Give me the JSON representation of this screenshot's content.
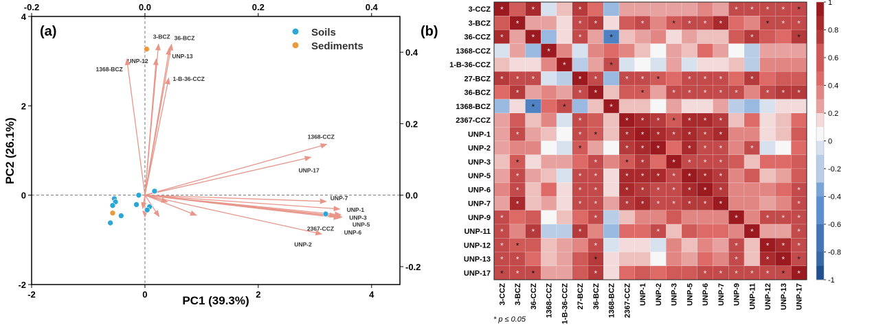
{
  "chart_data": [
    {
      "type": "scatter",
      "panel_label": "(a)",
      "xlabel": "PC1 (39.3%)",
      "ylabel": "PC2 (26.1%)",
      "xlim": [
        -2,
        4.5
      ],
      "ylim": [
        -2,
        4
      ],
      "xticks": [
        "-2",
        "0",
        "2",
        "4"
      ],
      "yticks": [
        "-2",
        "0",
        "2",
        "4"
      ],
      "top_xlim": [
        -0.2,
        0.45
      ],
      "top_xticks": [
        "-0.2",
        "0.0",
        "0.2",
        "0.4"
      ],
      "right_ylim": [
        -0.25,
        0.5
      ],
      "right_yticks": [
        "-0.2",
        "0.0",
        "0.2",
        "0.4"
      ],
      "legend_placement": "top-right",
      "series": [
        {
          "name": "Soils",
          "color": "#2aa7d6",
          "points": [
            [
              0.17,
              0.09
            ],
            [
              -0.11,
              0.0
            ],
            [
              -0.54,
              -0.08
            ],
            [
              -0.52,
              -0.15
            ],
            [
              -0.57,
              -0.23
            ],
            [
              -0.15,
              -0.21
            ],
            [
              0.08,
              -0.26
            ],
            [
              0.04,
              -0.33
            ],
            [
              -0.42,
              -0.46
            ],
            [
              -0.61,
              -0.62
            ],
            [
              3.19,
              -0.42
            ]
          ]
        },
        {
          "name": "Sediments",
          "color": "#e89a3c",
          "points": [
            [
              0.03,
              3.27
            ],
            [
              -0.57,
              -0.4
            ]
          ]
        }
      ],
      "loadings_color": "#e8968a",
      "loadings": [
        {
          "label": "3-BCZ",
          "x": 0.24,
          "y": 3.38
        },
        {
          "label": "36-BCZ",
          "x": 0.47,
          "y": 3.38
        },
        {
          "label": "UNP-12",
          "x": 0.2,
          "y": 3.05
        },
        {
          "label": "UNP-13",
          "x": 0.43,
          "y": 3.28
        },
        {
          "label": "1368-BCZ",
          "x": -0.32,
          "y": 3.05
        },
        {
          "label": "1-B-36-CCZ",
          "x": 0.42,
          "y": 2.62
        },
        {
          "label": "1368-CCZ",
          "x": 3.21,
          "y": 1.14
        },
        {
          "label": "UNP-17",
          "x": 2.93,
          "y": 0.85
        },
        {
          "label": "UNP-7",
          "x": 3.2,
          "y": -0.14
        },
        {
          "label": "UNP-1",
          "x": 3.44,
          "y": -0.31
        },
        {
          "label": "UNP-3",
          "x": 3.46,
          "y": -0.44
        },
        {
          "label": "UNP-5",
          "x": 3.48,
          "y": -0.49
        },
        {
          "label": "UNP-6",
          "x": 3.44,
          "y": -0.51
        },
        {
          "label": "2367-CCZ",
          "x": 3.37,
          "y": -0.46
        },
        {
          "label": "UNP-2",
          "x": 3.12,
          "y": -0.87
        },
        {
          "label": "",
          "x": 0.91,
          "y": -0.45
        },
        {
          "label": "",
          "x": 0.4,
          "y": -0.15
        },
        {
          "label": "",
          "x": 0.25,
          "y": -0.48
        },
        {
          "label": "",
          "x": 0.0,
          "y": -0.49
        },
        {
          "label": "",
          "x": -0.04,
          "y": -0.3
        }
      ]
    },
    {
      "type": "heatmap",
      "panel_label": "(b)",
      "labels": [
        "3-CCZ",
        "3-BCZ",
        "36-CCZ",
        "1368-CCZ",
        "1-B-36-CCZ",
        "27-BCZ",
        "36-BCZ",
        "1368-BCZ",
        "2367-CCZ",
        "UNP-1",
        "UNP-2",
        "UNP-3",
        "UNP-5",
        "UNP-6",
        "UNP-7",
        "UNP-9",
        "UNP-11",
        "UNP-12",
        "UNP-13",
        "UNP-17"
      ],
      "colorbar_range": [
        -1,
        1
      ],
      "colorbar_ticks": [
        "1",
        "0.8",
        "0.6",
        "0.4",
        "0.2",
        "0",
        "-0.2",
        "-0.4",
        "-0.6",
        "-0.8",
        "-1"
      ],
      "colors": {
        "low": "#1f4f8f",
        "mid": "#f7f7f7",
        "high": "#9b1a1f"
      },
      "footnote": "* p ≤ 0.05",
      "values": [
        [
          1,
          0.6,
          0.85,
          -0.1,
          0.2,
          0.75,
          0.45,
          -0.35,
          0.3,
          0.3,
          0.3,
          0.25,
          0.3,
          0.35,
          0.3,
          0.65,
          0.65,
          0.7,
          0.7,
          0.65
        ],
        [
          0.6,
          1,
          0.3,
          0.3,
          0.1,
          0.7,
          0.8,
          0.1,
          0.6,
          0.65,
          0.4,
          0.6,
          0.65,
          0.7,
          0.85,
          0.45,
          0.4,
          0.65,
          0.7,
          0.7
        ],
        [
          0.85,
          0.3,
          1,
          -0.3,
          0.1,
          0.65,
          0.3,
          -0.65,
          0.2,
          0.3,
          0.4,
          0.05,
          0.3,
          0.2,
          0.2,
          0.6,
          0.8,
          0.6,
          0.5,
          0.75
        ],
        [
          -0.1,
          0.3,
          -0.3,
          1,
          0.4,
          -0.1,
          0.4,
          0.5,
          0.4,
          0.2,
          -0.05,
          0.3,
          0.2,
          0.5,
          0.3,
          -0.05,
          -0.25,
          0.3,
          0.3,
          0.3
        ],
        [
          0.2,
          0.1,
          0.1,
          0.4,
          1,
          -0.2,
          0.3,
          0.65,
          -0.1,
          -0.05,
          -0.15,
          0.3,
          -0.1,
          0.1,
          0.1,
          0.2,
          -0.25,
          0.4,
          0.4,
          0.4
        ],
        [
          0.75,
          0.7,
          0.65,
          -0.1,
          -0.2,
          1,
          0.65,
          -0.3,
          0.65,
          0.65,
          0.6,
          0.45,
          0.7,
          0.65,
          0.65,
          0.45,
          0.75,
          0.5,
          0.6,
          0.6
        ],
        [
          0.45,
          0.8,
          0.3,
          0.4,
          0.3,
          0.65,
          1,
          0.2,
          0.6,
          0.6,
          0.3,
          0.7,
          0.7,
          0.7,
          0.7,
          0.65,
          0.4,
          0.7,
          0.8,
          0.75
        ],
        [
          -0.35,
          0.1,
          -0.65,
          0.5,
          0.65,
          -0.3,
          0.2,
          1,
          0.2,
          0.2,
          -0.05,
          0.3,
          0.05,
          0.05,
          0.25,
          -0.25,
          -0.35,
          -0.15,
          0.05,
          0.05
        ],
        [
          0.3,
          0.6,
          0.2,
          0.4,
          -0.1,
          0.65,
          0.6,
          0.2,
          1,
          0.9,
          0.75,
          0.6,
          0.9,
          0.85,
          0.8,
          0.2,
          0.45,
          0.1,
          0.15,
          0.5
        ],
        [
          0.3,
          0.65,
          0.3,
          0.2,
          -0.05,
          0.65,
          0.6,
          0.2,
          0.9,
          1,
          0.85,
          0.75,
          0.9,
          0.8,
          0.9,
          0.35,
          0.4,
          0.1,
          0.2,
          0.6
        ],
        [
          0.3,
          0.4,
          0.4,
          -0.05,
          -0.15,
          0.6,
          0.3,
          -0.05,
          0.75,
          0.85,
          1,
          0.45,
          0.85,
          0.65,
          0.7,
          0.35,
          0.65,
          -0.15,
          -0.05,
          0.5
        ],
        [
          0.2,
          0.6,
          0.05,
          0.3,
          0.3,
          0.45,
          0.7,
          0.4,
          0.6,
          0.75,
          0.45,
          1,
          0.7,
          0.7,
          0.7,
          0.55,
          0.2,
          0.5,
          0.5,
          0.6
        ],
        [
          0.3,
          0.65,
          0.3,
          0.2,
          -0.1,
          0.7,
          0.7,
          0.05,
          0.9,
          0.9,
          0.85,
          0.7,
          1,
          0.85,
          0.8,
          0.35,
          0.6,
          0.2,
          0.3,
          0.55
        ],
        [
          0.35,
          0.7,
          0.2,
          0.5,
          0.1,
          0.65,
          0.7,
          0.05,
          0.85,
          0.8,
          0.65,
          0.7,
          0.85,
          1,
          0.8,
          0.4,
          0.4,
          0.4,
          0.5,
          0.65
        ],
        [
          0.3,
          0.85,
          0.2,
          0.3,
          0.1,
          0.65,
          0.7,
          0.25,
          0.8,
          0.9,
          0.7,
          0.7,
          0.8,
          0.8,
          1,
          0.4,
          0.4,
          0.3,
          0.4,
          0.65
        ],
        [
          0.65,
          0.45,
          0.6,
          -0.05,
          0.2,
          0.45,
          0.65,
          -0.25,
          0.2,
          0.35,
          0.35,
          0.55,
          0.35,
          0.4,
          0.4,
          1,
          0.4,
          0.65,
          0.65,
          0.65
        ],
        [
          0.65,
          0.4,
          0.75,
          -0.25,
          -0.25,
          0.75,
          0.4,
          -0.35,
          0.45,
          0.45,
          0.65,
          0.2,
          0.6,
          0.45,
          0.45,
          0.4,
          1,
          0.3,
          0.3,
          0.65
        ],
        [
          0.65,
          0.6,
          0.6,
          0.2,
          0.3,
          0.4,
          0.65,
          -0.15,
          0.1,
          0.1,
          -0.15,
          0.4,
          0.2,
          0.4,
          0.3,
          0.65,
          0.2,
          1,
          0.9,
          0.65
        ],
        [
          0.65,
          0.65,
          0.45,
          0.2,
          0.3,
          0.55,
          0.8,
          0.05,
          0.2,
          0.2,
          -0.05,
          0.4,
          0.3,
          0.45,
          0.35,
          0.65,
          0.2,
          0.9,
          1,
          0.7
        ],
        [
          0.65,
          0.65,
          0.65,
          0.3,
          0.3,
          0.55,
          0.75,
          0.05,
          0.45,
          0.6,
          0.5,
          0.55,
          0.55,
          0.65,
          0.65,
          0.65,
          0.65,
          0.65,
          0.7,
          1
        ]
      ],
      "significance": [
        [
          "w",
          "",
          "w",
          "",
          "",
          "w",
          "",
          "",
          "",
          "",
          "",
          "",
          "",
          "",
          "",
          "w",
          "w",
          "w",
          "w",
          "b"
        ],
        [
          "",
          "w",
          "",
          "",
          "",
          "w",
          "w",
          "",
          "",
          "w",
          "",
          "b",
          "w",
          "w",
          "w",
          "",
          "",
          "b",
          "w",
          "w"
        ],
        [
          "w",
          "",
          "w",
          "",
          "",
          "w",
          "",
          "b",
          "",
          "",
          "",
          "",
          "",
          "",
          "",
          "",
          "w",
          "",
          "",
          "b"
        ],
        [
          "",
          "",
          "",
          "w",
          "",
          "",
          "",
          "",
          "",
          "",
          "",
          "",
          "",
          "",
          "",
          "",
          "",
          "",
          "",
          ""
        ],
        [
          "",
          "",
          "",
          "",
          "w",
          "",
          "",
          "b",
          "",
          "",
          "",
          "",
          "",
          "",
          "",
          "",
          "",
          "",
          "",
          ""
        ],
        [
          "w",
          "w",
          "w",
          "",
          "",
          "w",
          "w",
          "",
          "w",
          "w",
          "b",
          "",
          "w",
          "w",
          "w",
          "",
          "w",
          "",
          "",
          ""
        ],
        [
          "",
          "w",
          "",
          "",
          "",
          "w",
          "w",
          "",
          "",
          "b",
          "",
          "w",
          "w",
          "w",
          "w",
          "w",
          "",
          "w",
          "w",
          "w"
        ],
        [
          "",
          "",
          "b",
          "",
          "b",
          "",
          "",
          "w",
          "",
          "",
          "",
          "",
          "",
          "",
          "",
          "",
          "",
          "",
          "",
          ""
        ],
        [
          "",
          "",
          "",
          "",
          "",
          "w",
          "",
          "",
          "w",
          "w",
          "w",
          "b",
          "w",
          "w",
          "w",
          "",
          "",
          "",
          "",
          ""
        ],
        [
          "",
          "w",
          "",
          "",
          "",
          "w",
          "b",
          "",
          "w",
          "w",
          "w",
          "w",
          "w",
          "w",
          "w",
          "",
          "",
          "",
          "",
          ""
        ],
        [
          "",
          "",
          "",
          "",
          "",
          "b",
          "",
          "",
          "w",
          "w",
          "w",
          "",
          "w",
          "w",
          "w",
          "",
          "w",
          "",
          "",
          ""
        ],
        [
          "",
          "b",
          "",
          "",
          "",
          "",
          "w",
          "",
          "b",
          "w",
          "",
          "w",
          "w",
          "w",
          "w",
          "",
          "",
          "",
          "",
          ""
        ],
        [
          "",
          "w",
          "",
          "",
          "",
          "w",
          "w",
          "",
          "w",
          "w",
          "w",
          "w",
          "w",
          "w",
          "w",
          "",
          "",
          "",
          "",
          ""
        ],
        [
          "",
          "w",
          "",
          "",
          "",
          "w",
          "w",
          "",
          "w",
          "w",
          "w",
          "w",
          "w",
          "w",
          "w",
          "",
          "",
          "",
          "",
          "w"
        ],
        [
          "",
          "w",
          "",
          "",
          "",
          "w",
          "w",
          "",
          "w",
          "w",
          "w",
          "w",
          "w",
          "w",
          "w",
          "",
          "",
          "",
          "",
          "w"
        ],
        [
          "w",
          "",
          "",
          "",
          "",
          "",
          "w",
          "",
          "",
          "",
          "",
          "",
          "",
          "",
          "",
          "w",
          "",
          "w",
          "w",
          "w"
        ],
        [
          "w",
          "",
          "w",
          "",
          "",
          "w",
          "",
          "",
          "",
          "",
          "w",
          "",
          "",
          "",
          "",
          "",
          "w",
          "",
          "",
          "w"
        ],
        [
          "w",
          "b",
          "",
          "",
          "",
          "",
          "w",
          "",
          "",
          "",
          "",
          "",
          "",
          "",
          "",
          "w",
          "",
          "w",
          "w",
          "w"
        ],
        [
          "w",
          "w",
          "",
          "",
          "",
          "",
          "b",
          "",
          "",
          "",
          "",
          "",
          "",
          "",
          "",
          "w",
          "",
          "w",
          "w",
          "b"
        ],
        [
          "b",
          "w",
          "b",
          "",
          "",
          "",
          "w",
          "",
          "",
          "",
          "",
          "",
          "",
          "w",
          "w",
          "w",
          "w",
          "w",
          "b",
          "w"
        ]
      ]
    }
  ]
}
